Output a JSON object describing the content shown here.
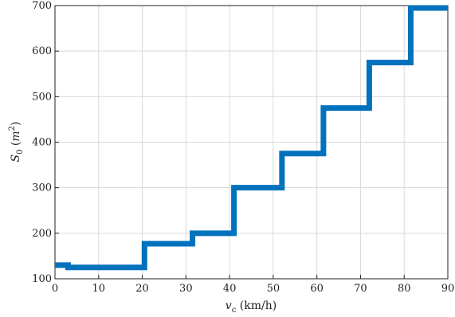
{
  "chart_data": {
    "type": "line",
    "step": true,
    "x": [
      0,
      3,
      3,
      20.5,
      20.5,
      31.5,
      31.5,
      41,
      41,
      52,
      52,
      61.5,
      61.5,
      72,
      72,
      81.5,
      81.5,
      90
    ],
    "y": [
      130,
      130,
      125,
      125,
      177,
      177,
      200,
      200,
      300,
      300,
      375,
      375,
      475,
      475,
      575,
      575,
      698,
      698
    ],
    "xlim": [
      0,
      90
    ],
    "ylim": [
      100,
      700
    ],
    "xticks": [
      "0",
      "10",
      "20",
      "30",
      "40",
      "50",
      "60",
      "70",
      "80",
      "90"
    ],
    "yticks": [
      "100",
      "200",
      "300",
      "400",
      "500",
      "600",
      "700"
    ],
    "xlabel": "v_c (km/h)",
    "ylabel": "S_0 (m^2)",
    "grid": true,
    "line_color": "#0072BD"
  }
}
